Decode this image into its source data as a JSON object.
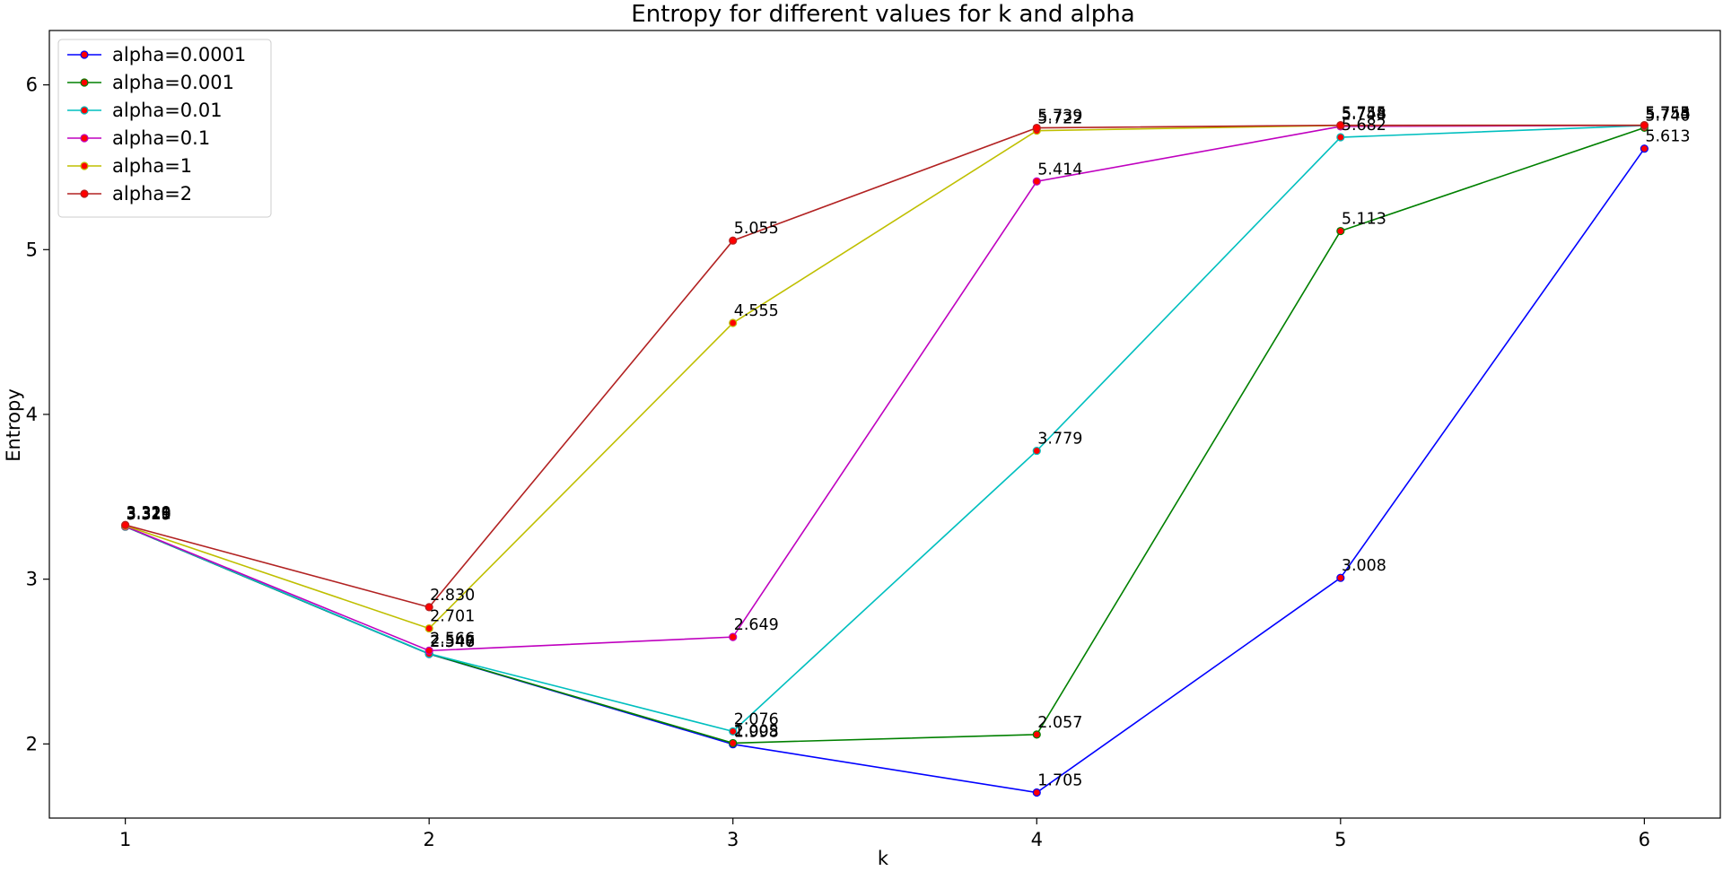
{
  "chart_data": {
    "type": "line",
    "title": "Entropy for different values for k and alpha",
    "xlabel": "k",
    "ylabel": "Entropy",
    "x": [
      1,
      2,
      3,
      4,
      5,
      6
    ],
    "xlim": [
      0.75,
      6.25
    ],
    "ylim": [
      1.55,
      6.33
    ],
    "xticks": [
      "1",
      "2",
      "3",
      "4",
      "5",
      "6"
    ],
    "yticks": [
      "2",
      "3",
      "4",
      "5",
      "6"
    ],
    "grid": false,
    "legend_position": "top-left",
    "marker_face_color": "#ff0000",
    "series": [
      {
        "name": "alpha=0.0001",
        "color": "#0000ff",
        "values": [
          3.319,
          2.546,
          1.998,
          1.705,
          3.008,
          5.613
        ],
        "labels": [
          "3.319",
          "2.546",
          "1.998",
          "1.705",
          "3.008",
          "5.613"
        ]
      },
      {
        "name": "alpha=0.001",
        "color": "#008000",
        "values": [
          3.319,
          2.547,
          2.005,
          2.057,
          5.113,
          5.74
        ],
        "labels": [
          "3.319",
          "2.547",
          "2.005",
          "2.057",
          "5.113",
          "5.740"
        ]
      },
      {
        "name": "alpha=0.01",
        "color": "#00bfbf",
        "values": [
          3.32,
          2.548,
          2.076,
          3.779,
          5.682,
          5.753
        ],
        "labels": [
          "3.320",
          "2.548",
          "2.076",
          "3.779",
          "5.682",
          "5.753"
        ]
      },
      {
        "name": "alpha=0.1",
        "color": "#bf00bf",
        "values": [
          3.321,
          2.566,
          2.649,
          5.414,
          5.748,
          5.754
        ],
        "labels": [
          "3.321",
          "2.566",
          "2.649",
          "5.414",
          "5.748",
          "5.754"
        ]
      },
      {
        "name": "alpha=1",
        "color": "#bfbf00",
        "values": [
          3.325,
          2.701,
          4.555,
          5.722,
          5.754,
          5.755
        ],
        "labels": [
          "3.325",
          "2.701",
          "4.555",
          "5.722",
          "5.754",
          "5.755"
        ]
      },
      {
        "name": "alpha=2",
        "color": "#b22222",
        "values": [
          3.329,
          2.83,
          5.055,
          5.739,
          5.755,
          5.755
        ],
        "labels": [
          "3.329",
          "2.830",
          "5.055",
          "5.739",
          "5.755",
          "5.755"
        ]
      }
    ]
  }
}
